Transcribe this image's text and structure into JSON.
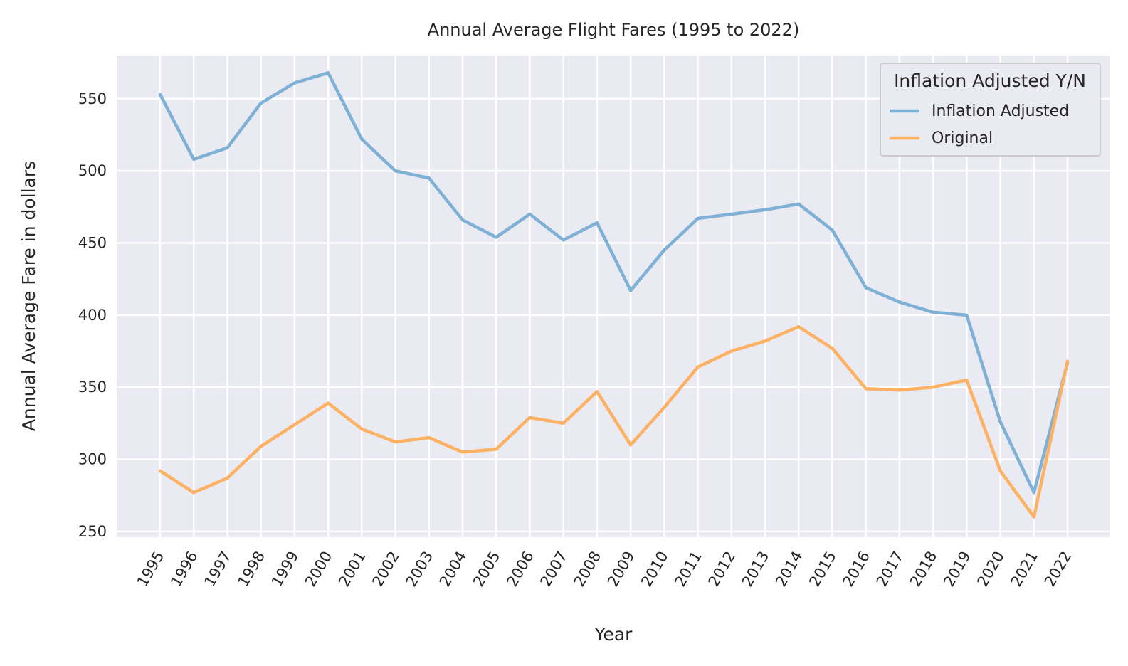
{
  "chart_data": {
    "type": "line",
    "title": "Annual Average Flight Fares (1995 to 2022)",
    "xlabel": "Year",
    "ylabel": "Annual Average Fare in dollars",
    "categories": [
      "1995",
      "1996",
      "1997",
      "1998",
      "1999",
      "2000",
      "2001",
      "2002",
      "2003",
      "2004",
      "2005",
      "2006",
      "2007",
      "2008",
      "2009",
      "2010",
      "2011",
      "2012",
      "2013",
      "2014",
      "2015",
      "2016",
      "2017",
      "2018",
      "2019",
      "2020",
      "2021",
      "2022"
    ],
    "yticks": [
      250,
      300,
      350,
      400,
      450,
      500,
      550
    ],
    "ylim": [
      246,
      580
    ],
    "grid": true,
    "legend": {
      "title": "Inflation Adjusted Y/N",
      "placement": "top-right"
    },
    "series": [
      {
        "name": "Inflation Adjusted",
        "color": "#7fb0d5",
        "values": [
          553,
          508,
          516,
          547,
          561,
          568,
          522,
          500,
          495,
          466,
          454,
          470,
          452,
          464,
          417,
          445,
          467,
          470,
          473,
          477,
          459,
          419,
          409,
          402,
          400,
          326,
          277,
          367
        ]
      },
      {
        "name": "Original",
        "color": "#fcb163",
        "values": [
          292,
          277,
          287,
          309,
          324,
          339,
          321,
          312,
          315,
          305,
          307,
          329,
          325,
          347,
          310,
          336,
          364,
          375,
          382,
          392,
          377,
          349,
          348,
          350,
          355,
          292,
          260,
          368
        ]
      }
    ]
  }
}
